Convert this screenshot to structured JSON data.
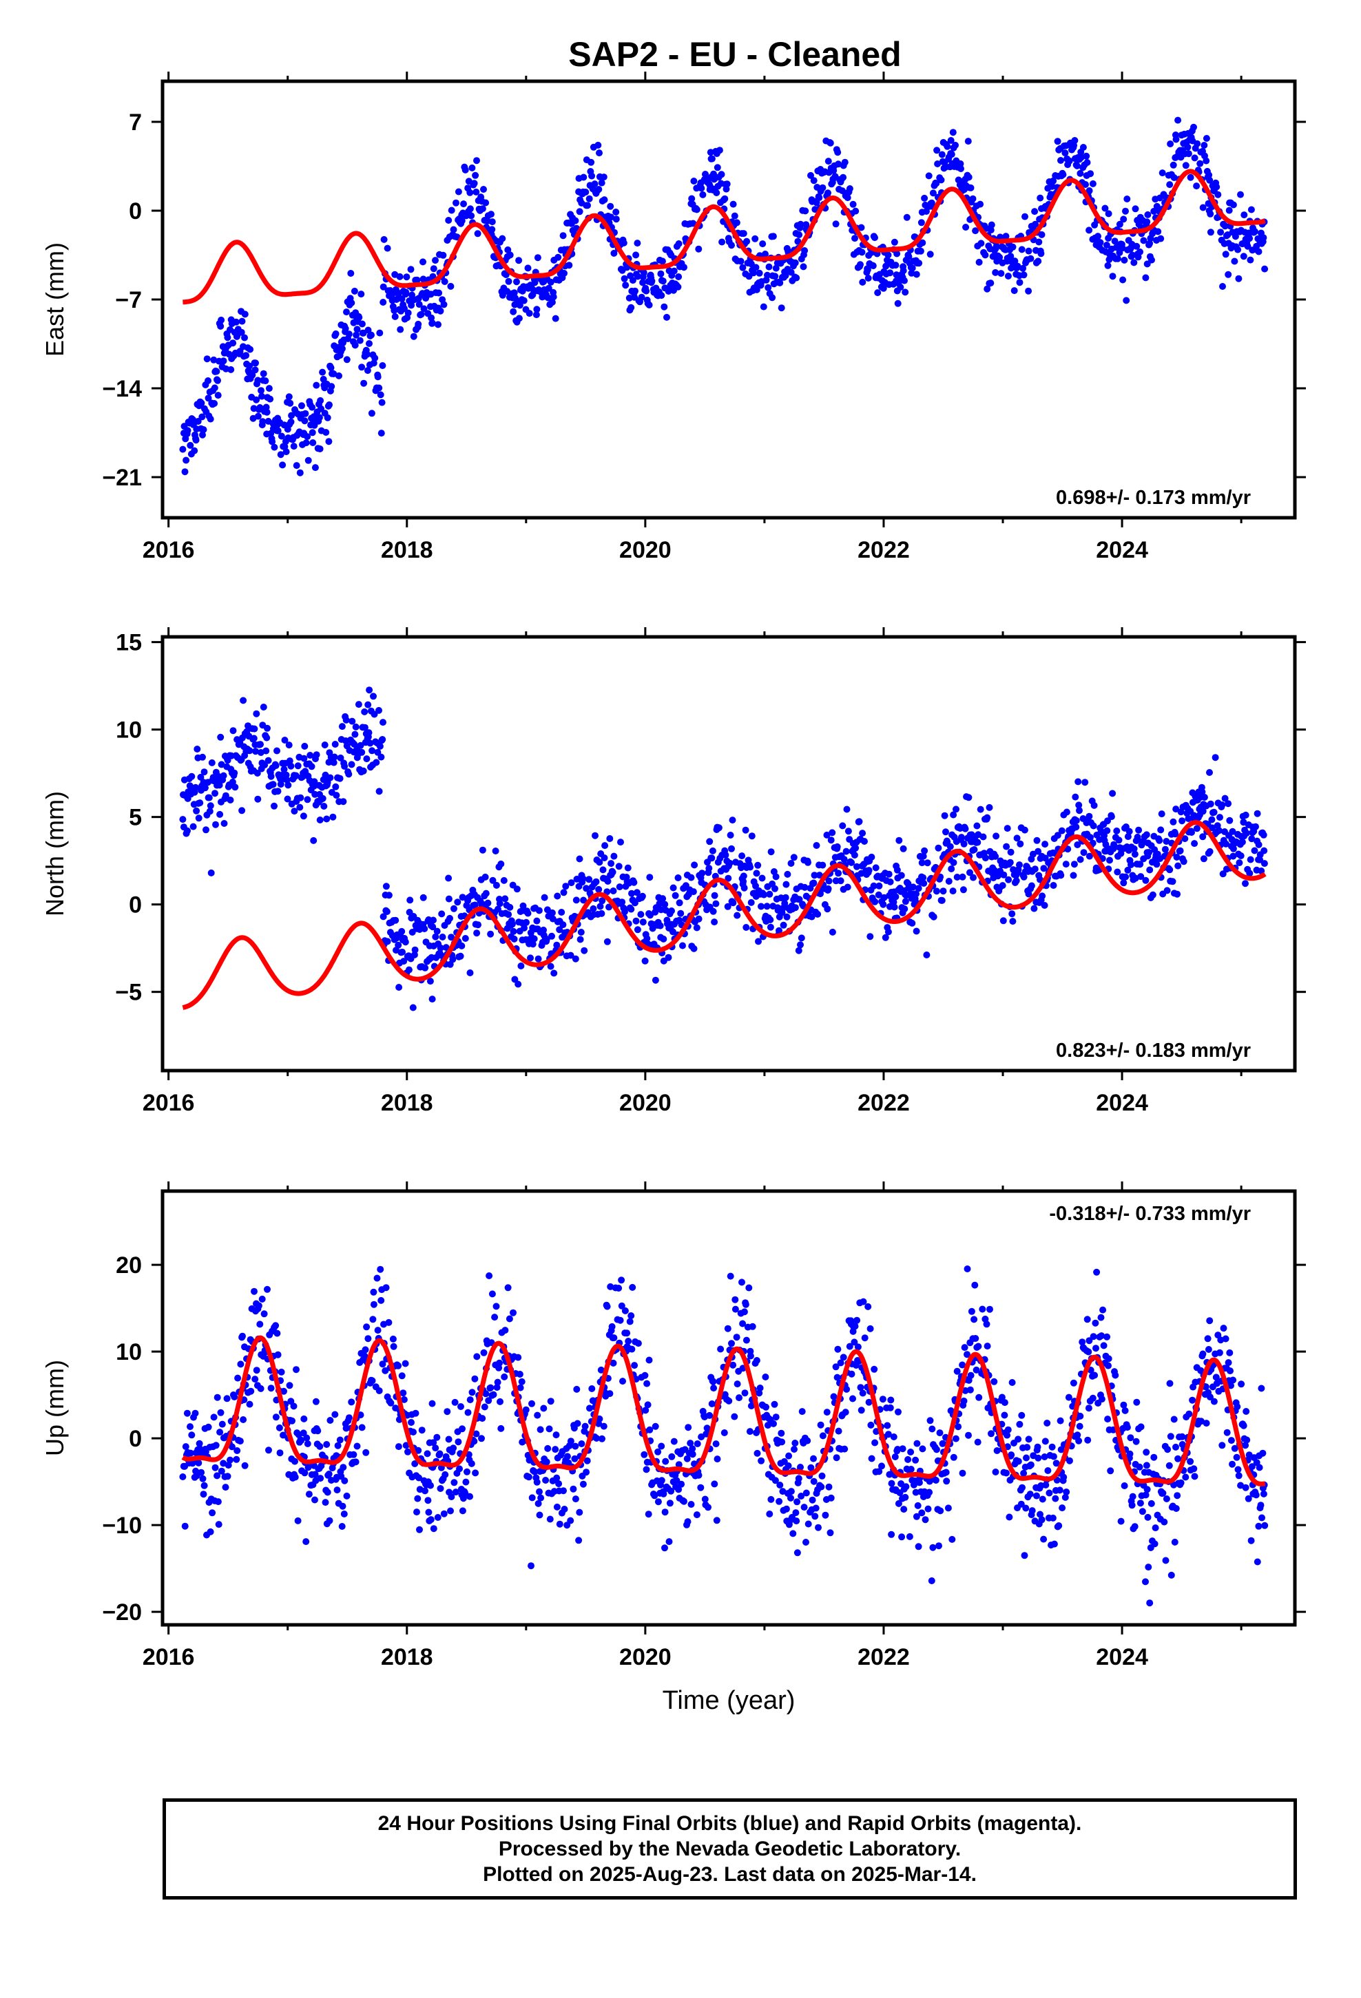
{
  "title": "SAP2  - EU - Cleaned",
  "colors": {
    "final_orbits": "#0000ff",
    "model": "#ff0000",
    "axes": "#000000"
  },
  "chart_data": [
    {
      "type": "scatter",
      "ylabel": "East (mm)",
      "xlabel": "",
      "xlim": [
        2015.95,
        2025.45
      ],
      "ylim": [
        -24.2,
        10.2
      ],
      "x_ticks": [
        "2016",
        "2018",
        "2020",
        "2022",
        "2024"
      ],
      "y_ticks": [
        "7",
        "0",
        "−7",
        "−14",
        "−21"
      ],
      "y_tick_values": [
        7,
        0,
        -7,
        -14,
        -21
      ],
      "rate_label": "0.698+/- 0.173 mm/yr",
      "series_color": "#0000ff",
      "model_color": "#ff0000",
      "time_range": [
        2016.12,
        2025.2
      ],
      "segments": [
        {
          "start": 2016.12,
          "end": 2017.8,
          "offset": -14.9
        },
        {
          "start": 2017.8,
          "end": 2025.2,
          "offset": -5.4
        }
      ],
      "trend_mm_per_yr": 0.698,
      "annual_amplitude": 4.0,
      "annual_phase_year": 0.43,
      "semiannual_amplitude": 1.0,
      "scatter_sd": 1.4,
      "model": {
        "offset": -5.6,
        "trend": 0.698,
        "annual_amplitude": 2.2,
        "annual_phase_year": 0.45,
        "semiannual_amplitude": 0.6
      }
    },
    {
      "type": "scatter",
      "ylabel": "North (mm)",
      "xlabel": "",
      "xlim": [
        2015.95,
        2025.45
      ],
      "ylim": [
        -9.5,
        15.3
      ],
      "x_ticks": [
        "2016",
        "2018",
        "2020",
        "2022",
        "2024"
      ],
      "y_ticks": [
        "15",
        "10",
        "5",
        "0",
        "−5"
      ],
      "y_tick_values": [
        15,
        10,
        5,
        0,
        -5
      ],
      "rate_label": "0.823+/- 0.183 mm/yr",
      "series_color": "#0000ff",
      "model_color": "#ff0000",
      "time_range": [
        2016.12,
        2025.2
      ],
      "segments": [
        {
          "start": 2016.12,
          "end": 2017.8,
          "offset": 7.0
        },
        {
          "start": 2017.8,
          "end": 2025.2,
          "offset": -3.2
        }
      ],
      "trend_mm_per_yr": 0.823,
      "annual_amplitude": 1.3,
      "annual_phase_year": 0.55,
      "semiannual_amplitude": 0.3,
      "scatter_sd": 1.2,
      "model": {
        "offset": -4.3,
        "trend": 0.823,
        "annual_amplitude": 1.8,
        "annual_phase_year": 0.49,
        "semiannual_amplitude": 0.2
      }
    },
    {
      "type": "scatter",
      "ylabel": "Up (mm)",
      "xlabel": "Time (year)",
      "xlim": [
        2015.95,
        2025.45
      ],
      "ylim": [
        -21.5,
        28.5
      ],
      "x_ticks": [
        "2016",
        "2018",
        "2020",
        "2022",
        "2024"
      ],
      "y_ticks": [
        "20",
        "10",
        "0",
        "−10",
        "−20"
      ],
      "y_tick_values": [
        20,
        10,
        0,
        -10,
        -20
      ],
      "rate_label": "-0.318+/- 0.733 mm/yr",
      "series_color": "#0000ff",
      "model_color": "#ff0000",
      "time_range": [
        2016.12,
        2025.2
      ],
      "segments": [
        {
          "start": 2016.12,
          "end": 2025.2,
          "offset": 2.5
        }
      ],
      "trend_mm_per_yr": -0.318,
      "annual_amplitude": 7.5,
      "annual_phase_year": 0.66,
      "semiannual_amplitude": 2.0,
      "scatter_sd": 3.8,
      "model": {
        "offset": 2.6,
        "trend": -0.318,
        "annual_amplitude": 7.0,
        "annual_phase_year": 0.65,
        "semiannual_amplitude": 2.2
      }
    }
  ],
  "footer": {
    "line1": "24 Hour Positions Using Final Orbits (blue) and Rapid Orbits (magenta).",
    "line2": "Processed by the Nevada Geodetic Laboratory.",
    "line3": "Plotted on 2025-Aug-23. Last data on 2025-Mar-14."
  }
}
